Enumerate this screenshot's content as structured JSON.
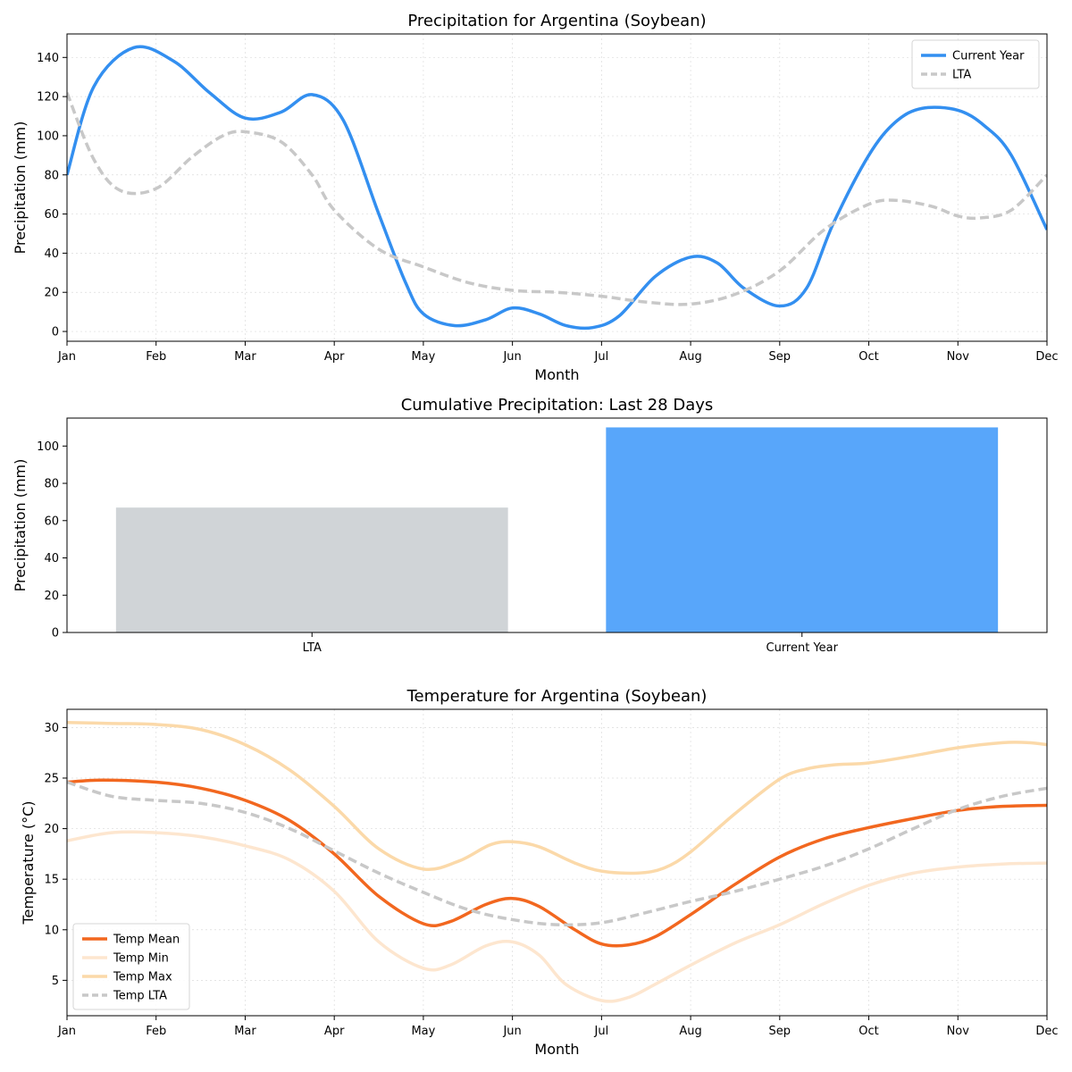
{
  "chart_data": [
    {
      "type": "line",
      "title": "Precipitation for Argentina (Soybean)",
      "xlabel": "Month",
      "ylabel": "Precipitation (mm)",
      "x_ticks": [
        "Jan",
        "Feb",
        "Mar",
        "Apr",
        "May",
        "Jun",
        "Jul",
        "Aug",
        "Sep",
        "Oct",
        "Nov",
        "Dec"
      ],
      "y_ticks": [
        0,
        20,
        40,
        60,
        80,
        100,
        120,
        140
      ],
      "xlim": [
        0,
        11
      ],
      "ylim": [
        -5,
        152
      ],
      "grid": true,
      "legend": "top-right",
      "series": [
        {
          "name": "Current Year",
          "color": "#338ff0",
          "style": "solid",
          "points": [
            [
              0,
              80
            ],
            [
              0.3,
              125
            ],
            [
              0.75,
              145
            ],
            [
              1.2,
              138
            ],
            [
              1.6,
              122
            ],
            [
              2.0,
              109
            ],
            [
              2.4,
              112
            ],
            [
              2.75,
              121
            ],
            [
              3.1,
              108
            ],
            [
              3.5,
              60
            ],
            [
              3.8,
              25
            ],
            [
              4.0,
              9
            ],
            [
              4.35,
              3
            ],
            [
              4.7,
              6
            ],
            [
              5.0,
              12
            ],
            [
              5.3,
              9
            ],
            [
              5.6,
              3
            ],
            [
              5.9,
              2
            ],
            [
              6.2,
              8
            ],
            [
              6.6,
              28
            ],
            [
              7.0,
              38
            ],
            [
              7.3,
              35
            ],
            [
              7.6,
              22
            ],
            [
              8.0,
              13
            ],
            [
              8.3,
              22
            ],
            [
              8.6,
              55
            ],
            [
              9.0,
              90
            ],
            [
              9.3,
              107
            ],
            [
              9.6,
              114
            ],
            [
              10.0,
              113
            ],
            [
              10.3,
              105
            ],
            [
              10.6,
              90
            ],
            [
              11.0,
              52
            ]
          ]
        },
        {
          "name": "LTA",
          "color": "#c8c8c8",
          "style": "dashed",
          "points": [
            [
              0,
              122
            ],
            [
              0.3,
              88
            ],
            [
              0.6,
              72
            ],
            [
              1.0,
              73
            ],
            [
              1.4,
              89
            ],
            [
              1.75,
              100
            ],
            [
              2.0,
              102
            ],
            [
              2.4,
              97
            ],
            [
              2.75,
              80
            ],
            [
              3.0,
              62
            ],
            [
              3.5,
              42
            ],
            [
              4.0,
              33
            ],
            [
              4.5,
              25
            ],
            [
              5.0,
              21
            ],
            [
              5.5,
              20
            ],
            [
              6.0,
              18
            ],
            [
              6.5,
              15
            ],
            [
              7.0,
              14
            ],
            [
              7.5,
              19
            ],
            [
              8.0,
              31
            ],
            [
              8.5,
              52
            ],
            [
              9.0,
              65
            ],
            [
              9.3,
              67
            ],
            [
              9.7,
              64
            ],
            [
              10.0,
              59
            ],
            [
              10.25,
              58
            ],
            [
              10.6,
              62
            ],
            [
              11.0,
              80
            ]
          ]
        }
      ]
    },
    {
      "type": "bar",
      "title": "Cumulative Precipitation: Last 28 Days",
      "ylabel": "Precipitation (mm)",
      "categories": [
        "LTA",
        "Current Year"
      ],
      "values": [
        67,
        110
      ],
      "colors": [
        "#d0d4d7",
        "#58a6fa"
      ],
      "y_ticks": [
        0,
        20,
        40,
        60,
        80,
        100
      ],
      "ylim": [
        0,
        115
      ]
    },
    {
      "type": "line",
      "title": "Temperature for Argentina (Soybean)",
      "xlabel": "Month",
      "ylabel": "Temperature (°C)",
      "x_ticks": [
        "Jan",
        "Feb",
        "Mar",
        "Apr",
        "May",
        "Jun",
        "Jul",
        "Aug",
        "Sep",
        "Oct",
        "Nov",
        "Dec"
      ],
      "y_ticks": [
        5,
        10,
        15,
        20,
        25,
        30
      ],
      "xlim": [
        0,
        11
      ],
      "ylim": [
        1.5,
        31.8
      ],
      "grid": true,
      "legend": "bottom-left",
      "series": [
        {
          "name": "Temp Mean",
          "color": "#f2671f",
          "style": "solid",
          "width": 3.5,
          "points": [
            [
              0,
              24.6
            ],
            [
              0.4,
              24.8
            ],
            [
              1.0,
              24.6
            ],
            [
              1.5,
              24.0
            ],
            [
              2.0,
              22.8
            ],
            [
              2.5,
              20.8
            ],
            [
              3.0,
              17.5
            ],
            [
              3.5,
              13.3
            ],
            [
              4.0,
              10.6
            ],
            [
              4.3,
              10.8
            ],
            [
              4.7,
              12.5
            ],
            [
              5.0,
              13.1
            ],
            [
              5.3,
              12.3
            ],
            [
              5.7,
              10.0
            ],
            [
              6.0,
              8.6
            ],
            [
              6.3,
              8.5
            ],
            [
              6.6,
              9.3
            ],
            [
              7.0,
              11.5
            ],
            [
              7.5,
              14.5
            ],
            [
              8.0,
              17.2
            ],
            [
              8.5,
              19.0
            ],
            [
              9.0,
              20.1
            ],
            [
              9.5,
              21.0
            ],
            [
              10.0,
              21.8
            ],
            [
              10.5,
              22.2
            ],
            [
              11.0,
              22.3
            ]
          ]
        },
        {
          "name": "Temp Min",
          "color": "#fde6cf",
          "style": "solid",
          "width": 3.5,
          "points": [
            [
              0,
              18.8
            ],
            [
              0.5,
              19.6
            ],
            [
              1.0,
              19.6
            ],
            [
              1.5,
              19.2
            ],
            [
              2.0,
              18.3
            ],
            [
              2.5,
              16.9
            ],
            [
              3.0,
              13.8
            ],
            [
              3.5,
              8.8
            ],
            [
              4.0,
              6.2
            ],
            [
              4.3,
              6.5
            ],
            [
              4.7,
              8.4
            ],
            [
              5.0,
              8.8
            ],
            [
              5.3,
              7.5
            ],
            [
              5.6,
              4.6
            ],
            [
              6.0,
              3.0
            ],
            [
              6.3,
              3.3
            ],
            [
              6.6,
              4.6
            ],
            [
              7.0,
              6.5
            ],
            [
              7.5,
              8.7
            ],
            [
              8.0,
              10.5
            ],
            [
              8.5,
              12.6
            ],
            [
              9.0,
              14.4
            ],
            [
              9.5,
              15.6
            ],
            [
              10.0,
              16.2
            ],
            [
              10.5,
              16.5
            ],
            [
              11.0,
              16.6
            ]
          ]
        },
        {
          "name": "Temp Max",
          "color": "#fbd9a9",
          "style": "solid",
          "width": 3.5,
          "points": [
            [
              0,
              30.5
            ],
            [
              0.5,
              30.4
            ],
            [
              1.0,
              30.3
            ],
            [
              1.5,
              29.8
            ],
            [
              2.0,
              28.3
            ],
            [
              2.5,
              25.8
            ],
            [
              3.0,
              22.2
            ],
            [
              3.5,
              18.0
            ],
            [
              4.0,
              16.0
            ],
            [
              4.4,
              16.8
            ],
            [
              4.75,
              18.4
            ],
            [
              5.0,
              18.7
            ],
            [
              5.3,
              18.2
            ],
            [
              5.7,
              16.6
            ],
            [
              6.0,
              15.8
            ],
            [
              6.4,
              15.6
            ],
            [
              6.7,
              16.1
            ],
            [
              7.0,
              17.7
            ],
            [
              7.5,
              21.5
            ],
            [
              8.0,
              24.9
            ],
            [
              8.3,
              25.9
            ],
            [
              8.6,
              26.3
            ],
            [
              9.0,
              26.5
            ],
            [
              9.5,
              27.2
            ],
            [
              10.0,
              28.0
            ],
            [
              10.5,
              28.5
            ],
            [
              10.8,
              28.5
            ],
            [
              11.0,
              28.3
            ]
          ]
        },
        {
          "name": "Temp LTA",
          "color": "#c8c8c8",
          "style": "dashed",
          "width": 3.5,
          "points": [
            [
              0,
              24.6
            ],
            [
              0.5,
              23.2
            ],
            [
              1.0,
              22.8
            ],
            [
              1.5,
              22.5
            ],
            [
              2.0,
              21.6
            ],
            [
              2.5,
              20.0
            ],
            [
              3.0,
              17.8
            ],
            [
              3.5,
              15.6
            ],
            [
              4.0,
              13.7
            ],
            [
              4.5,
              12.0
            ],
            [
              5.0,
              11.0
            ],
            [
              5.5,
              10.5
            ],
            [
              6.0,
              10.7
            ],
            [
              6.5,
              11.7
            ],
            [
              7.0,
              12.8
            ],
            [
              7.5,
              13.8
            ],
            [
              8.0,
              15.0
            ],
            [
              8.5,
              16.3
            ],
            [
              9.0,
              18.0
            ],
            [
              9.5,
              20.0
            ],
            [
              10.0,
              21.9
            ],
            [
              10.5,
              23.2
            ],
            [
              11.0,
              24.0
            ]
          ]
        }
      ]
    }
  ]
}
